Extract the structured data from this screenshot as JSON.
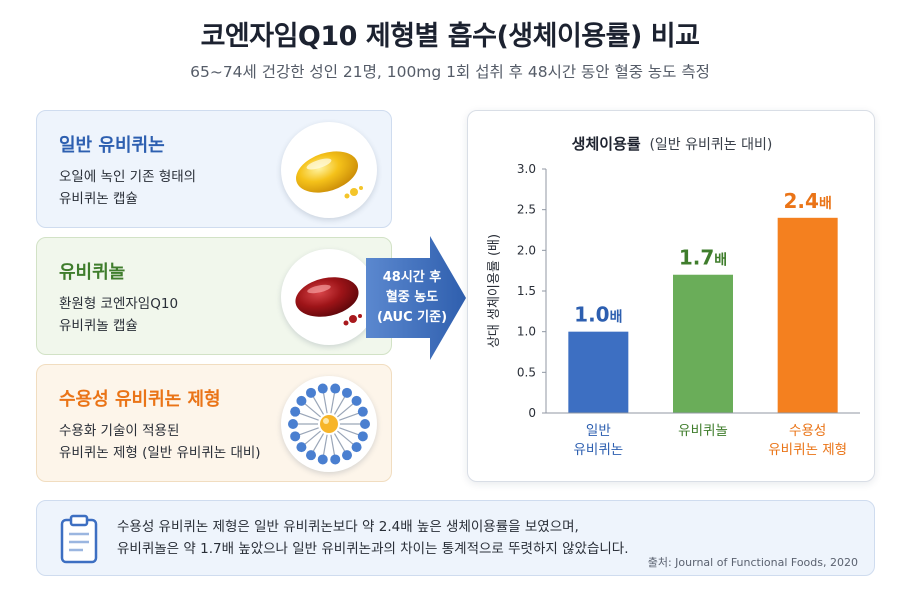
{
  "header": {
    "title": "코엔자임Q10 제형별 흡수(생체이용률) 비교",
    "subtitle": "65~74세 건강한 성인 21명, 100mg 1회 섭취 후 48시간 동안 혈중 농도 측정"
  },
  "cards": [
    {
      "title": "일반 유비퀴논",
      "desc": [
        "오일에 녹인 기존 형태의",
        "유비퀴논 캡슐"
      ],
      "icon": "yellow-softgel-icon",
      "color": "#2d5fb0"
    },
    {
      "title": "유비퀴놀",
      "desc": [
        "환원형 코엔자임Q10",
        "유비퀴놀 캡슐"
      ],
      "icon": "red-softgel-icon",
      "color": "#3f7d2c"
    },
    {
      "title": "수용성 유비퀴논 제형",
      "desc": [
        "수용화 기술이 적용된",
        "유비퀴논 제형 (일반 유비퀴논 대비)"
      ],
      "icon": "micelle-icon",
      "color": "#ea7417"
    }
  ],
  "arrow": {
    "lines": [
      "48시간 후",
      "혈중 농도",
      "(AUC 기준)"
    ]
  },
  "chart_data": {
    "type": "bar",
    "title": "생체이용률",
    "title_suffix": "(일반 유비퀴논 대비)",
    "ylabel": "상대 생체이용률 (배)",
    "xlabel": "",
    "ylim": [
      0,
      3.0
    ],
    "yticks": [
      0,
      0.5,
      1.0,
      1.5,
      2.0,
      2.5,
      3.0
    ],
    "ytick_labels": [
      "0",
      "0.5",
      "1.0",
      "1.5",
      "2.0",
      "2.5",
      "3.0"
    ],
    "grid": false,
    "categories": [
      {
        "lines": [
          "일반",
          "유비퀴논"
        ]
      },
      {
        "lines": [
          "유비퀴놀"
        ]
      },
      {
        "lines": [
          "수용성",
          "유비퀴논 제형"
        ]
      }
    ],
    "values": [
      1.0,
      1.7,
      2.4
    ],
    "value_labels": [
      "1.0",
      "1.7",
      "2.4"
    ],
    "value_suffix": "배",
    "colors": [
      "#3d6fc2",
      "#6aad59",
      "#f4801f"
    ],
    "label_colors": [
      "#2d5fb0",
      "#3f7d2c",
      "#ea7417"
    ]
  },
  "note": {
    "lines": [
      "수용성 유비퀴논 제형은 일반 유비퀴논보다 약 2.4배 높은 생체이용률을 보였으며,",
      "유비퀴놀은 약 1.7배 높았으나 일반 유비퀴논과의 차이는 통계적으로 뚜렷하지 않았습니다."
    ],
    "source": "출처: Journal of Functional Foods, 2020",
    "icon": "clipboard-icon"
  }
}
